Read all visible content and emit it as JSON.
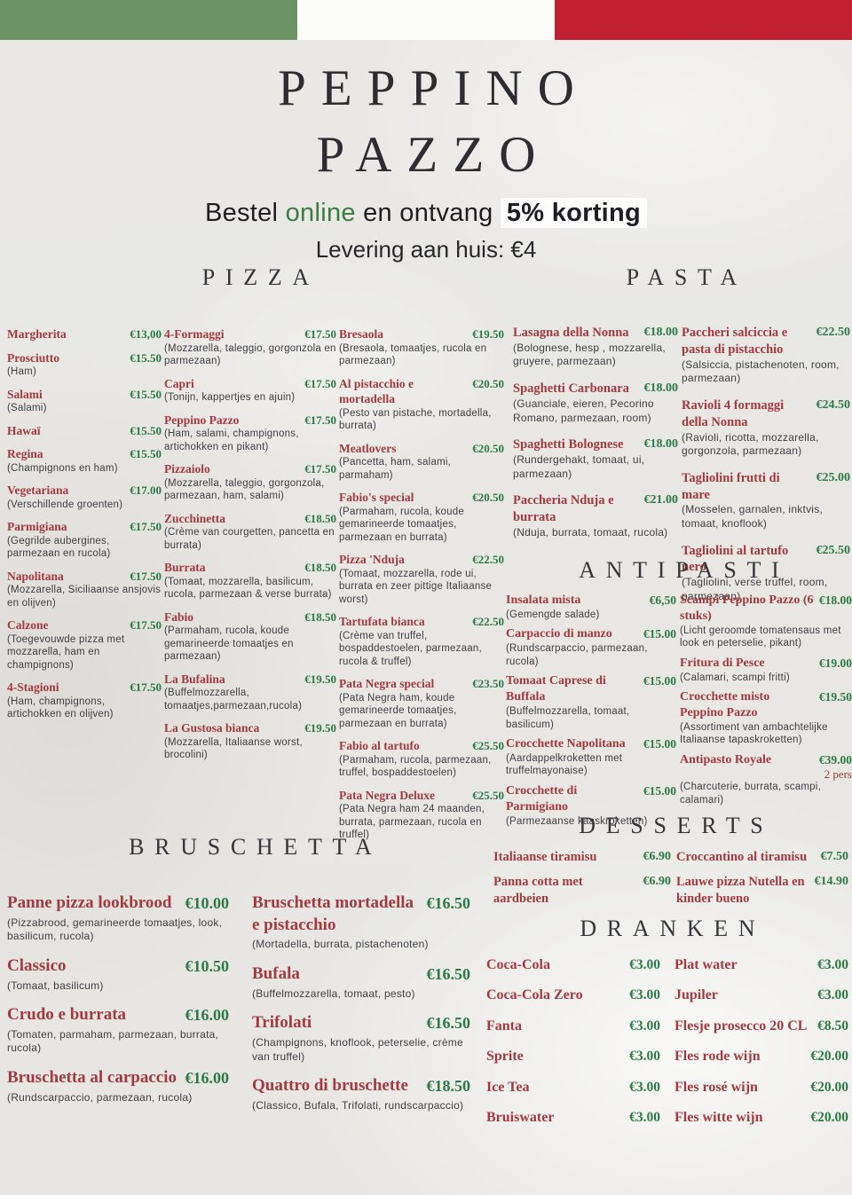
{
  "header": {
    "title_line1": "PEPPINO",
    "title_line2": "PAZZO",
    "promo": {
      "prefix": "Bestel ",
      "online": "online",
      "middle": " en ontvang ",
      "highlight": "5% korting"
    },
    "delivery": "Levering aan huis: €4"
  },
  "colors": {
    "flag_green": "#6C9364",
    "flag_white": "#FBFBFA",
    "flag_red": "#C0202F",
    "item_name_red": "#A23A3F",
    "price_green": "#2B7A44",
    "description_gray": "#3F3F44",
    "heading_charcoal": "#36363B",
    "promo_link_green": "#3E7B42"
  },
  "sections": {
    "pizza": {
      "title": "PIZZA",
      "columns": [
        [
          {
            "name": "Margherita",
            "price": "€13,00"
          },
          {
            "name": "Prosciutto",
            "price": "€15.50",
            "desc": "(Ham)"
          },
          {
            "name": "Salami",
            "price": "€15.50",
            "desc": "(Salami)"
          },
          {
            "name": "Hawaï",
            "price": "€15.50"
          },
          {
            "name": "Regina",
            "price": "€15.50",
            "desc": "(Champignons en ham)"
          },
          {
            "name": "Vegetariana",
            "price": "€17.00",
            "desc": "(Verschillende groenten)"
          },
          {
            "name": "Parmigiana",
            "price": "€17.50",
            "desc": "(Gegrilde aubergines, parmezaan en rucola)"
          },
          {
            "name": "Napolitana",
            "price": "€17.50",
            "desc": "(Mozzarella, Siciliaanse ansjovis en olijven)"
          },
          {
            "name": "Calzone",
            "price": "€17.50",
            "desc": "(Toegevouwde pizza met mozzarella, ham en champignons)"
          },
          {
            "name": "4-Stagioni",
            "price": "€17.50",
            "desc": "(Ham, champignons, artichokken en olijven)"
          }
        ],
        [
          {
            "name": "4-Formaggi",
            "price": "€17.50",
            "desc": "(Mozzarella, taleggio, gorgonzola en parmezaan)"
          },
          {
            "name": "Capri",
            "price": "€17.50",
            "desc": "(Tonijn, kappertjes en ajuin)"
          },
          {
            "name": "Peppino Pazzo",
            "price": "€17.50",
            "desc": "(Ham, salami, champignons, artichokken en pikant)"
          },
          {
            "name": "Pizzaiolo",
            "price": "€17.50",
            "desc": "(Mozzarella, taleggio, gorgonzola, parmezaan, ham, salami)"
          },
          {
            "name": "Zucchinetta",
            "price": "€18.50",
            "desc": "(Crème van courgetten, pancetta en burrata)"
          },
          {
            "name": "Burrata",
            "price": "€18.50",
            "desc": "(Tomaat, mozzarella, basilicum, rucola, parmezaan & verse burrata)"
          },
          {
            "name": "Fabio",
            "price": "€18.50",
            "desc": "(Parmaham, rucola, koude gemarineerde tomaatjes en parmezaan)"
          },
          {
            "name": "La Bufalina",
            "price": "€19.50",
            "desc": "(Buffelmozzarella, tomaatjes,parmezaan,rucola)"
          },
          {
            "name": "La Gustosa bianca",
            "price": "€19.50",
            "desc": "(Mozzarella, Italiaanse worst, brocolini)"
          }
        ],
        [
          {
            "name": "Bresaola",
            "price": "€19.50",
            "desc": "(Bresaola, tomaatjes, rucola en parmezaan)"
          },
          {
            "name": "Al pistacchio e mortadella",
            "price": "€20.50",
            "desc": "(Pesto van pistache, mortadella, burrata)"
          },
          {
            "name": "Meatlovers",
            "price": "€20.50",
            "desc": "(Pancetta, ham, salami, parmaham)"
          },
          {
            "name": "Fabio's special",
            "price": "€20.50",
            "desc": "(Parmaham, rucola, koude gemarineerde tomaatjes, parmezaan en burrata)"
          },
          {
            "name": "Pizza 'Nduja",
            "price": "€22.50",
            "desc": "(Tomaat, mozzarella, rode ui, burrata en zeer pittige Italiaanse worst)"
          },
          {
            "name": "Tartufata bianca",
            "price": "€22.50",
            "desc": "(Crème van truffel, bospaddestoelen, parmezaan, rucola & truffel)"
          },
          {
            "name": "Pata Negra special",
            "price": "€23.50",
            "desc": "(Pata Negra ham, koude gemarineerde tomaatjes, parmezaan en burrata)"
          },
          {
            "name": "Fabio al tartufo",
            "price": "€25.50",
            "desc": "(Parmaham, rucola, parmezaan, truffel, bospaddestoelen)"
          },
          {
            "name": "Pata Negra Deluxe",
            "price": "€25.50",
            "desc": "(Pata Negra ham 24 maanden, burrata, parmezaan, rucola en truffel)"
          }
        ]
      ]
    },
    "pasta": {
      "title": "PASTA",
      "columns": [
        [
          {
            "name": "Lasagna della Nonna",
            "price": "€18.00",
            "desc": "(Bolognese, hesp , mozzarella, gruyere, parmezaan)"
          },
          {
            "name": "Spaghetti Carbonara",
            "price": "€18.00",
            "desc": "(Guanciale, eieren, Pecorino Romano, parmezaan, room)"
          },
          {
            "name": "Spaghetti Bolognese",
            "price": "€18.00",
            "desc": "(Rundergehakt, tomaat, ui, parmezaan)"
          },
          {
            "name": "Paccheria Nduja e burrata",
            "price": "€21.00",
            "desc": "(Nduja, burrata, tomaat, rucola)"
          }
        ],
        [
          {
            "name": "Paccheri salciccia e pasta di pistacchio",
            "price": "€22.50",
            "desc": "(Salsiccia, pistachenoten, room, parmezaan)"
          },
          {
            "name": "Ravioli 4 formaggi della Nonna",
            "price": "€24.50",
            "desc": "(Ravioli, ricotta, mozzarella, gorgonzola, parmezaan)"
          },
          {
            "name": "Tagliolini frutti di mare",
            "price": "€25.00",
            "desc": "(Mosselen, garnalen, inktvis, tomaat, knoflook)"
          },
          {
            "name": "Tagliolini al tartufo nero",
            "price": "€25.50",
            "desc": "(Tagliolini, verse truffel, room, parmezaan)"
          }
        ]
      ]
    },
    "antipasti": {
      "title": "ANTIPASTI",
      "columns": [
        [
          {
            "name": "Insalata mista",
            "price": "€6,50",
            "desc": "(Gemengde salade)"
          },
          {
            "name": "Carpaccio di manzo",
            "price": "€15.00",
            "desc": "(Rundscarpaccio, parmezaan, rucola)"
          },
          {
            "name": "Tomaat Caprese di Buffala",
            "price": "€15.00",
            "desc": "(Buffelmozzarella, tomaat, basilicum)"
          },
          {
            "name": "Crocchette Napolitana",
            "price": "€15.00",
            "desc": "(Aardappelkroketten met truffelmayonaise)"
          },
          {
            "name": "Crocchette di Parmigiano",
            "price": "€15.00",
            "desc": "(Parmezaanse kaaskroketten)"
          }
        ],
        [
          {
            "name": "Scampi Peppino Pazzo (6 stuks)",
            "price": "€18.00",
            "desc": "(Licht geroomde tomatensaus met look en peterselie, pikant)"
          },
          {
            "name": "Fritura di Pesce",
            "price": "€19.00",
            "desc": "(Calamari, scampi fritti)"
          },
          {
            "name": "Crocchette misto Peppino Pazzo",
            "price": "€19.50",
            "desc": "(Assortiment van ambachtelijke Italiaanse tapaskroketten)"
          },
          {
            "name": "Antipasto Royale",
            "price": "€39.00",
            "note": "2 pers",
            "desc": "(Charcuterie, burrata, scampi, calamari)"
          }
        ]
      ]
    },
    "bruschetta": {
      "title": "BRUSCHETTA",
      "columns": [
        [
          {
            "name": "Panne pizza lookbrood",
            "price": "€10.00",
            "desc": "(Pizzabrood, gemarineerde tomaatjes, look, basilicum, rucola)"
          },
          {
            "name": "Classico",
            "price": "€10.50",
            "desc": "(Tomaat, basilicum)"
          },
          {
            "name": "Crudo e burrata",
            "price": "€16.00",
            "desc": "(Tomaten, parmaham, parmezaan, burrata, rucola)"
          },
          {
            "name": "Bruschetta al carpaccio",
            "price": "€16.00",
            "desc": "(Rundscarpaccio, parmezaan, rucola)"
          }
        ],
        [
          {
            "name": "Bruschetta mortadella e pistacchio",
            "price": "€16.50",
            "desc": "(Mortadella, burrata, pistachenoten)"
          },
          {
            "name": "Bufala",
            "price": "€16.50",
            "desc": "(Buffelmozzarella, tomaat, pesto)"
          },
          {
            "name": "Trifolati",
            "price": "€16.50",
            "desc": "(Champignons, knoflook, peterselie, crème van truffel)"
          },
          {
            "name": "Quattro di bruschette",
            "price": "€18.50",
            "desc": "(Classico, Bufala, Trifolati, rundscarpaccio)"
          }
        ]
      ]
    },
    "desserts": {
      "title": "DESSERTS",
      "columns": [
        [
          {
            "name": "Italiaanse tiramisu",
            "price": "€6.90"
          },
          {
            "name": "Panna cotta met aardbeien",
            "price": "€6.90"
          }
        ],
        [
          {
            "name": "Croccantino al tiramisu",
            "price": "€7.50"
          },
          {
            "name": "Lauwe pizza Nutella en kinder bueno",
            "price": "€14.90"
          }
        ]
      ]
    },
    "dranken": {
      "title": "DRANKEN",
      "columns": [
        [
          {
            "name": "Coca-Cola",
            "price": "€3.00"
          },
          {
            "name": "Coca-Cola Zero",
            "price": "€3.00"
          },
          {
            "name": "Fanta",
            "price": "€3.00"
          },
          {
            "name": "Sprite",
            "price": "€3.00"
          },
          {
            "name": "Ice Tea",
            "price": "€3.00"
          },
          {
            "name": "Bruiswater",
            "price": "€3.00"
          }
        ],
        [
          {
            "name": "Plat water",
            "price": "€3.00"
          },
          {
            "name": "Jupiler",
            "price": "€3.00"
          },
          {
            "name": "Flesje prosecco 20 CL",
            "price": "€8.50"
          },
          {
            "name": "Fles rode wijn",
            "price": "€20.00"
          },
          {
            "name": "Fles rosé wijn",
            "price": "€20.00"
          },
          {
            "name": "Fles witte wijn",
            "price": "€20.00"
          }
        ]
      ]
    }
  }
}
